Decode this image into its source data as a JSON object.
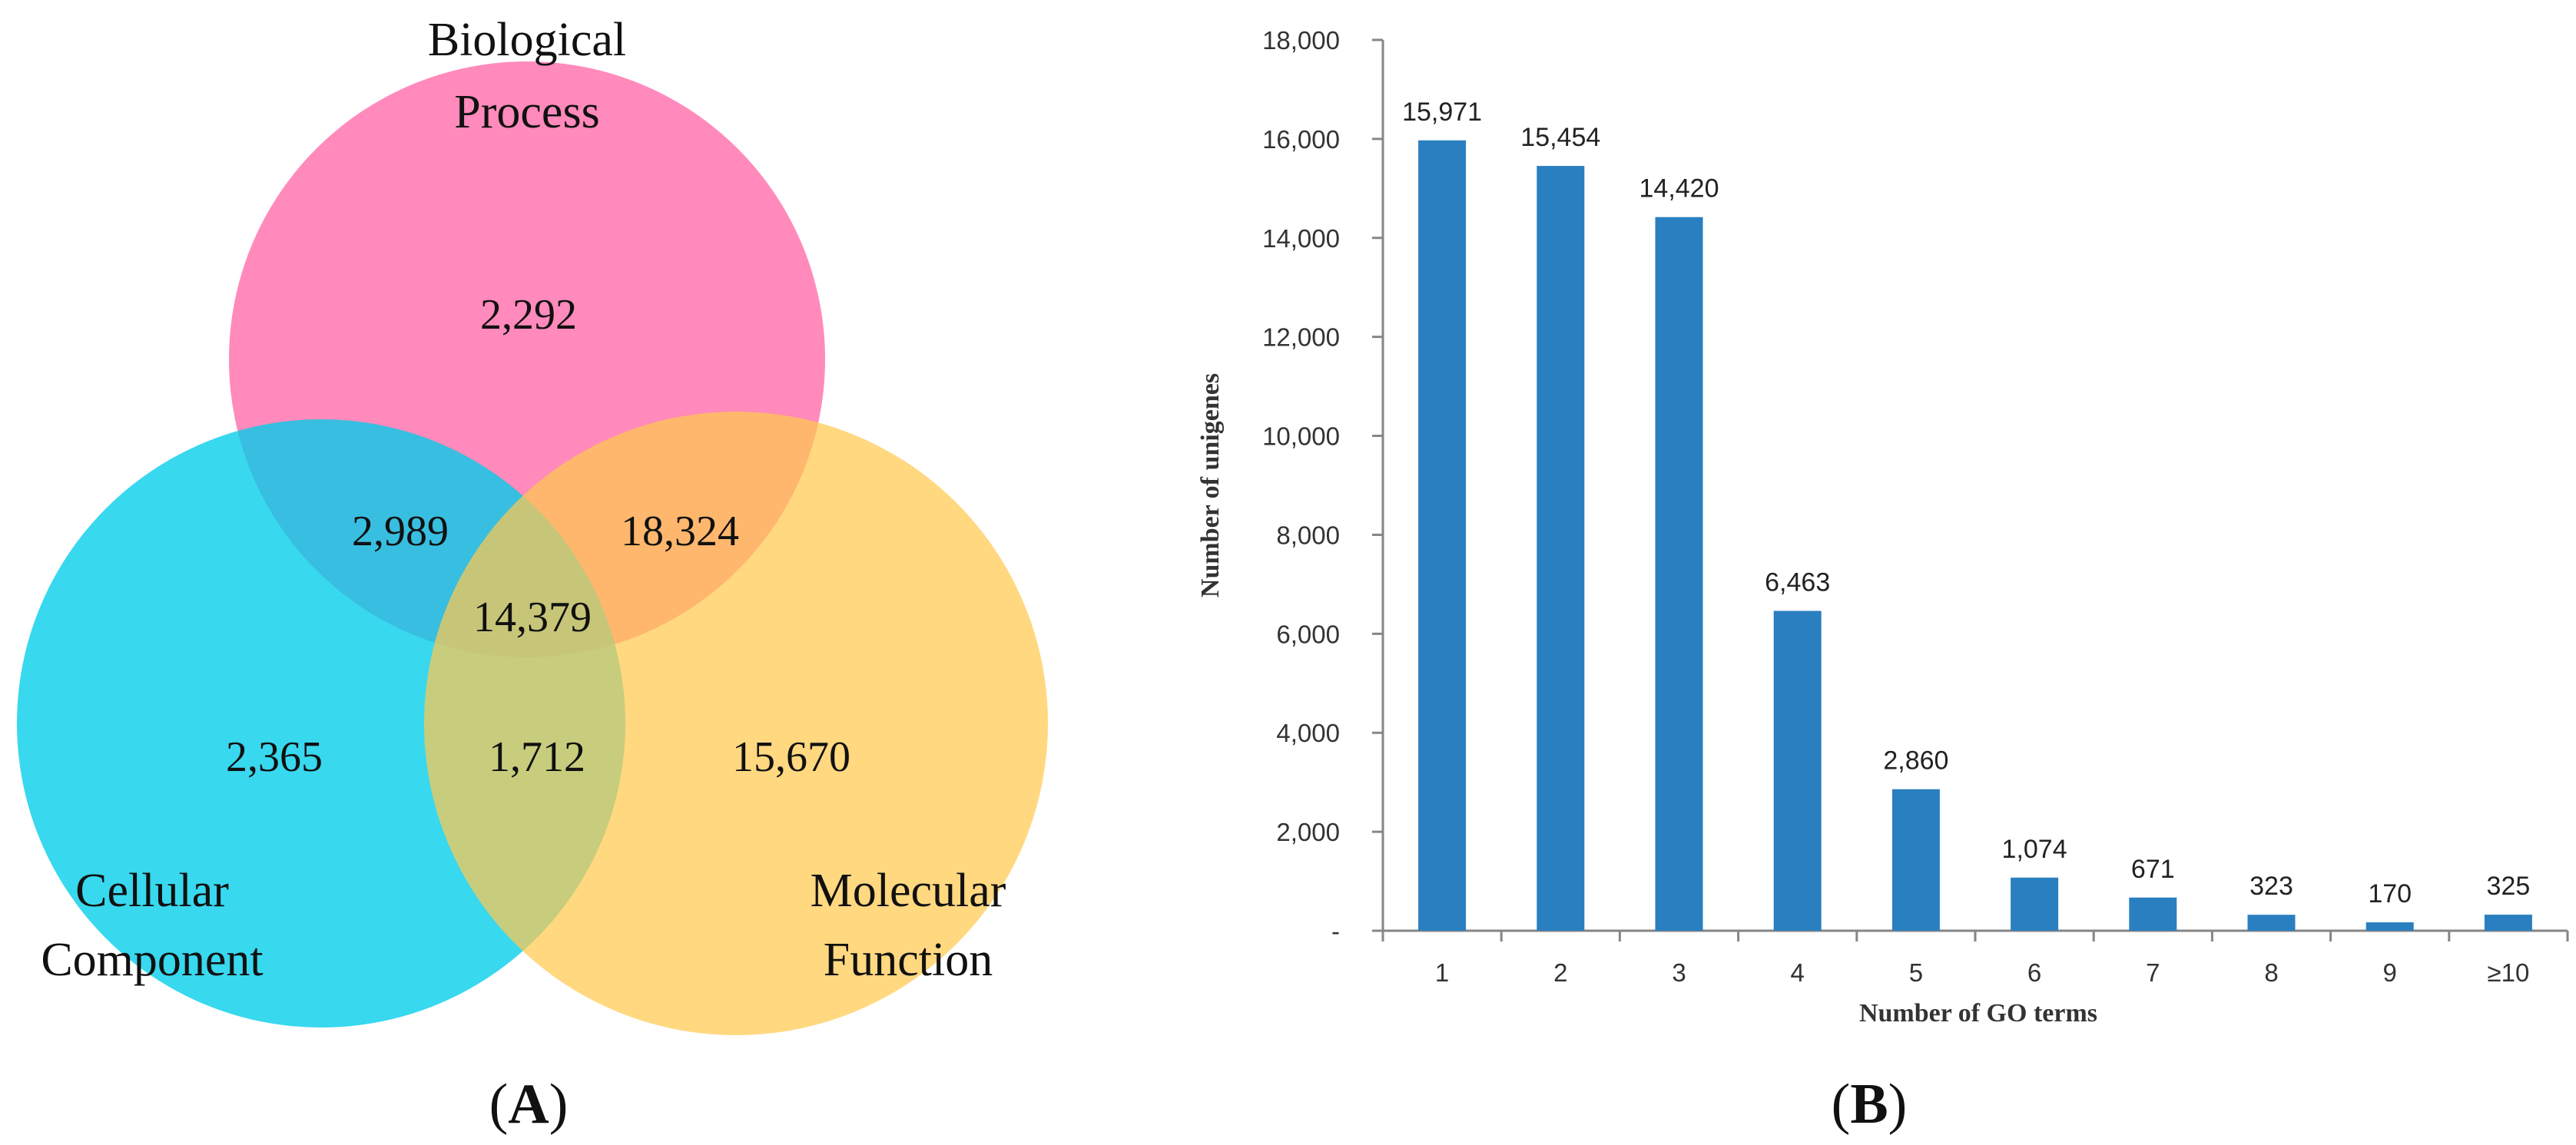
{
  "panel_a": {
    "label_open": "(",
    "label_letter": "A",
    "label_close": ")",
    "venn": {
      "sets": [
        {
          "name_line1": "Biological",
          "name_line2": "Process",
          "color": "#FF69A8"
        },
        {
          "name_line1": "Cellular",
          "name_line2": "Component",
          "color": "#00CDEB"
        },
        {
          "name_line1": "Molecular",
          "name_line2": "Function",
          "color": "#FFC94F"
        }
      ],
      "regions": {
        "bp_only": "2,292",
        "bp_cc": "2,989",
        "bp_mf": "18,324",
        "bp_cc_mf": "14,379",
        "cc_only": "2,365",
        "cc_mf": "1,712",
        "mf_only": "15,670"
      }
    }
  },
  "panel_b": {
    "label_open": "(",
    "label_letter": "B",
    "label_close": ")"
  },
  "chart_data": {
    "type": "bar",
    "title": "",
    "xlabel": "Number of GO terms",
    "ylabel": "Number of unigenes",
    "categories": [
      "1",
      "2",
      "3",
      "4",
      "5",
      "6",
      "7",
      "8",
      "9",
      "≥10"
    ],
    "values": [
      15971,
      15454,
      14420,
      6463,
      2860,
      1074,
      671,
      323,
      170,
      325
    ],
    "data_labels": [
      "15,971",
      "15,454",
      "14,420",
      "6,463",
      "2,860",
      "1,074",
      "671",
      "323",
      "170",
      "325"
    ],
    "ylim": [
      0,
      18000
    ],
    "yticks": [
      0,
      2000,
      4000,
      6000,
      8000,
      10000,
      12000,
      14000,
      16000,
      18000
    ],
    "ytick_labels": [
      "-",
      "2,000",
      "4,000",
      "6,000",
      "8,000",
      "10,000",
      "12,000",
      "14,000",
      "16,000",
      "18,000"
    ],
    "bar_color": "#2A7FC0",
    "grid": false
  }
}
